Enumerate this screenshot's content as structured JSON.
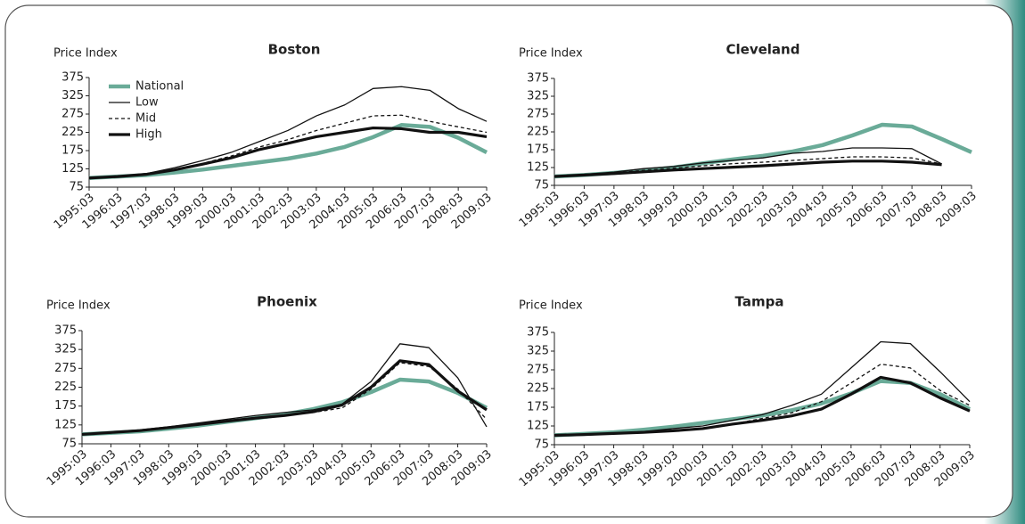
{
  "chart_data": [
    {
      "type": "line",
      "title": "Boston",
      "y_label": "Price Index",
      "legend": "upper left",
      "x": [
        "1995:03",
        "1996:03",
        "1997:03",
        "1998:03",
        "1999:03",
        "2000:03",
        "2001:03",
        "2002:03",
        "2003:03",
        "2004:03",
        "2005:03",
        "2006:03",
        "2007:03",
        "2008:03",
        "2009:03"
      ],
      "ylim": [
        75,
        375
      ],
      "yticks": [
        75,
        125,
        175,
        225,
        275,
        325,
        375
      ],
      "series": [
        {
          "name": "National",
          "color": "#6aab98",
          "values": [
            100,
            104,
            108,
            115,
            123,
            133,
            143,
            153,
            167,
            185,
            212,
            245,
            240,
            210,
            170
          ]
        },
        {
          "name": "Low",
          "color": "#111111",
          "values": [
            100,
            105,
            112,
            128,
            148,
            170,
            200,
            230,
            270,
            300,
            345,
            350,
            340,
            290,
            255
          ]
        },
        {
          "name": "Mid",
          "color": "#111111",
          "values": [
            100,
            104,
            110,
            122,
            140,
            160,
            185,
            205,
            230,
            250,
            270,
            272,
            255,
            240,
            225
          ]
        },
        {
          "name": "High",
          "color": "#111111",
          "values": [
            100,
            104,
            110,
            122,
            138,
            155,
            178,
            195,
            213,
            225,
            237,
            235,
            225,
            225,
            213
          ]
        }
      ]
    },
    {
      "type": "line",
      "title": "Cleveland",
      "y_label": "Price Index",
      "x": [
        "1995:03",
        "1996:03",
        "1997:03",
        "1998:03",
        "1999:03",
        "2000:03",
        "2001:03",
        "2002:03",
        "2003:03",
        "2004:03",
        "2005:03",
        "2006:03",
        "2007:03",
        "2008:03",
        "2009:03"
      ],
      "ylim": [
        75,
        375
      ],
      "yticks": [
        75,
        125,
        175,
        225,
        275,
        325,
        375
      ],
      "series": [
        {
          "color": "#6aab98",
          "values": [
            100,
            104,
            110,
            117,
            125,
            137,
            148,
            158,
            170,
            188,
            215,
            245,
            240,
            205,
            168
          ]
        },
        {
          "color": "#111111",
          "values": [
            100,
            106,
            112,
            122,
            128,
            138,
            145,
            152,
            165,
            170,
            180,
            180,
            178,
            135,
            null
          ]
        },
        {
          "color": "#111111",
          "values": [
            100,
            105,
            110,
            117,
            123,
            130,
            136,
            140,
            145,
            150,
            155,
            155,
            152,
            135,
            null
          ]
        },
        {
          "color": "#111111",
          "values": [
            100,
            104,
            108,
            113,
            118,
            122,
            126,
            130,
            135,
            140,
            143,
            143,
            140,
            133,
            null
          ]
        }
      ]
    },
    {
      "type": "line",
      "title": "Phoenix",
      "y_label": "Price Index",
      "x": [
        "1995:03",
        "1996:03",
        "1997:03",
        "1998:03",
        "1999:03",
        "2000:03",
        "2001:03",
        "2002:03",
        "2003:03",
        "2004:03",
        "2005:03",
        "2006:03",
        "2007:03",
        "2008:03",
        "2009:03"
      ],
      "ylim": [
        75,
        375
      ],
      "yticks": [
        75,
        125,
        175,
        225,
        275,
        325,
        375
      ],
      "series": [
        {
          "color": "#6aab98",
          "values": [
            100,
            104,
            108,
            115,
            123,
            133,
            143,
            153,
            167,
            185,
            212,
            245,
            240,
            210,
            170
          ]
        },
        {
          "color": "#111111",
          "values": [
            100,
            106,
            112,
            120,
            130,
            140,
            150,
            158,
            165,
            180,
            240,
            340,
            330,
            250,
            120
          ]
        },
        {
          "color": "#111111",
          "values": [
            100,
            105,
            110,
            118,
            126,
            135,
            143,
            150,
            158,
            170,
            220,
            290,
            280,
            220,
            140
          ]
        },
        {
          "color": "#111111",
          "values": [
            100,
            105,
            110,
            118,
            126,
            135,
            143,
            150,
            160,
            178,
            225,
            295,
            285,
            215,
            165
          ]
        }
      ]
    },
    {
      "type": "line",
      "title": "Tampa",
      "y_label": "Price Index",
      "x": [
        "1995:03",
        "1996:03",
        "1997:03",
        "1998:03",
        "1999:03",
        "2000:03",
        "2001:03",
        "2002:03",
        "2003:03",
        "2004:03",
        "2005:03",
        "2006:03",
        "2007:03",
        "2008:03",
        "2009:03"
      ],
      "ylim": [
        75,
        375
      ],
      "yticks": [
        75,
        125,
        175,
        225,
        275,
        325,
        375
      ],
      "series": [
        {
          "color": "#6aab98",
          "values": [
            100,
            104,
            108,
            115,
            123,
            133,
            143,
            153,
            167,
            185,
            212,
            245,
            240,
            210,
            170
          ]
        },
        {
          "color": "#111111",
          "values": [
            100,
            103,
            106,
            110,
            118,
            125,
            140,
            155,
            180,
            210,
            280,
            350,
            345,
            270,
            190
          ]
        },
        {
          "color": "#111111",
          "values": [
            100,
            102,
            105,
            108,
            113,
            120,
            130,
            145,
            160,
            190,
            240,
            290,
            280,
            220,
            180
          ]
        },
        {
          "color": "#111111",
          "values": [
            100,
            102,
            105,
            108,
            112,
            118,
            130,
            140,
            152,
            170,
            210,
            255,
            240,
            200,
            165
          ]
        }
      ]
    }
  ]
}
